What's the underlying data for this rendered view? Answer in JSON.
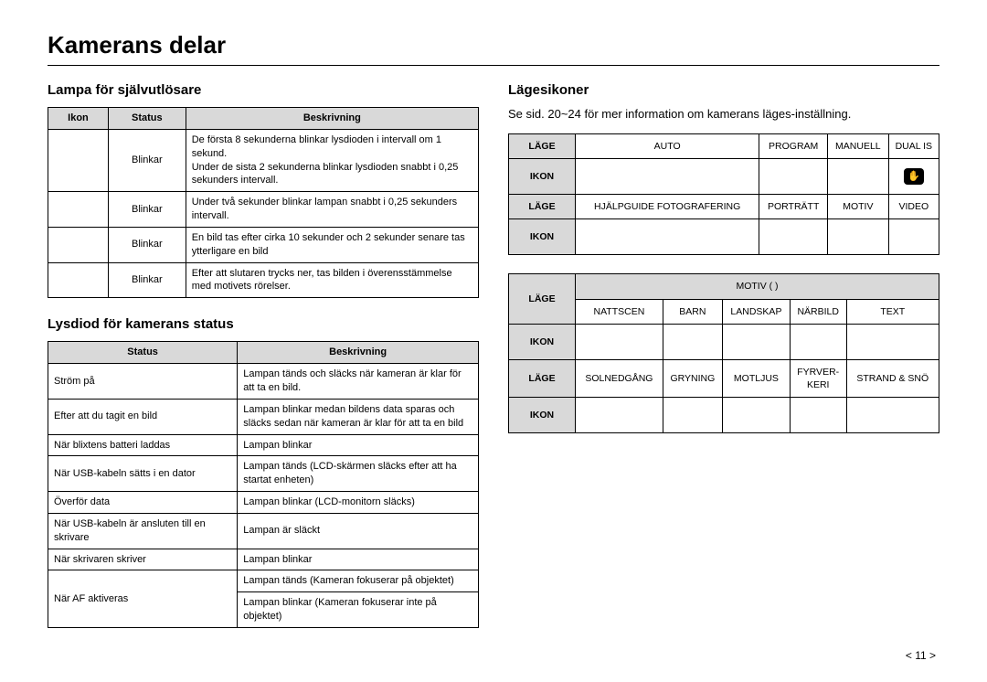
{
  "page": {
    "title": "Kamerans delar",
    "page_number": "< 11 >"
  },
  "left": {
    "section1_title": "Lampa för självutlösare",
    "table1": {
      "headers": [
        "Ikon",
        "Status",
        "Beskrivning"
      ],
      "rows": [
        {
          "icon": "",
          "status": "Blinkar",
          "desc": "De första 8 sekunderna blinkar lysdioden i intervall om 1 sekund.\nUnder de sista 2 sekunderna blinkar lysdioden snabbt i 0,25 sekunders intervall."
        },
        {
          "icon": "",
          "status": "Blinkar",
          "desc": "Under två sekunder blinkar lampan snabbt i  0,25 sekunders intervall."
        },
        {
          "icon": "",
          "status": "Blinkar",
          "desc": "En bild tas efter cirka 10 sekunder och 2 sekunder senare tas ytterligare en bild"
        },
        {
          "icon": "",
          "status": "Blinkar",
          "desc": "Efter att slutaren trycks ner, tas bilden i överensstämmelse med motivets rörelser."
        }
      ]
    },
    "section2_title": "Lysdiod för kamerans status",
    "table2": {
      "headers": [
        "Status",
        "Beskrivning"
      ],
      "rows": [
        {
          "status": "Ström på",
          "desc": "Lampan tänds och släcks när kameran är klar för att ta en bild."
        },
        {
          "status": "Efter att du tagit en bild",
          "desc": "Lampan blinkar medan bildens data sparas och släcks sedan när kameran är klar för att ta en bild"
        },
        {
          "status": "När blixtens batteri laddas",
          "desc": "Lampan blinkar"
        },
        {
          "status": "När USB-kabeln sätts i en dator",
          "desc": "Lampan tänds (LCD-skärmen släcks efter att ha startat enheten)"
        },
        {
          "status": "Överför data",
          "desc": "Lampan blinkar (LCD-monitorn släcks)"
        },
        {
          "status": "När USB-kabeln är ansluten till en skrivare",
          "desc": "Lampan är släckt"
        },
        {
          "status": "När skrivaren skriver",
          "desc": "Lampan blinkar"
        }
      ],
      "af_row": {
        "status": "När AF aktiveras",
        "desc1": "Lampan tänds (Kameran fokuserar på objektet)",
        "desc2": "Lampan blinkar (Kameran fokuserar inte på objektet)"
      }
    }
  },
  "right": {
    "section_title": "Lägesikoner",
    "intro": "Se sid. 20~24 för mer information om kamerans läges-inställning.",
    "labels": {
      "mode": "LÄGE",
      "icon": "IKON"
    },
    "block1": {
      "row1": [
        "AUTO",
        "PROGRAM",
        "MANUELL",
        "DUAL IS"
      ],
      "row2": [
        "HJÄLPGUIDE FOTOGRAFERING",
        "PORTRÄTT",
        "MOTIV",
        "VIDEO"
      ]
    },
    "block2": {
      "header_span": "MOTIV (               )",
      "row1": [
        "NATTSCEN",
        "BARN",
        "LANDSKAP",
        "NÄRBILD",
        "TEXT"
      ],
      "row2": [
        "SOLNEDGÅNG",
        "GRYNING",
        "MOTLJUS",
        "FYRVER-\nKERI",
        "STRAND & SNÖ"
      ]
    },
    "dual_is_alt": "DUAL IS"
  },
  "style": {
    "header_bg": "#d9d9d9",
    "border_color": "#000000",
    "text_color": "#000000",
    "fontsize_body": 11,
    "fontsize_title": 26,
    "fontsize_section": 15
  }
}
